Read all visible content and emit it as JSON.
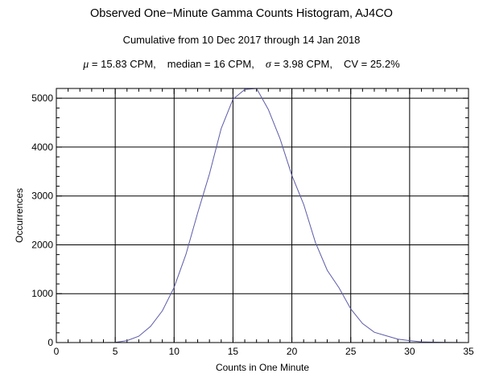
{
  "chart_data": {
    "type": "line",
    "title": "Observed One−Minute Gamma Counts Histogram, AJ4CO",
    "subtitle": "Cumulative from 10 Dec 2017 through 14 Jan 2018",
    "stats": {
      "mu_symbol": "μ",
      "mu_text": " = 15.83 CPM,",
      "median_text": "median = 16 CPM,",
      "sigma_symbol": "σ",
      "sigma_text": " = 3.98 CPM,",
      "cv_text": "CV = 25.2%"
    },
    "xlabel": "Counts in One Minute",
    "ylabel": "Occurrences",
    "xlim": [
      0,
      35
    ],
    "ylim": [
      0,
      5200
    ],
    "x_major_ticks": [
      0,
      5,
      10,
      15,
      20,
      25,
      30,
      35
    ],
    "y_major_ticks": [
      0,
      1000,
      2000,
      3000,
      4000,
      5000
    ],
    "grid": true,
    "line_color": "#5b5ba8",
    "series": [
      {
        "x": [
          0,
          1,
          2,
          3,
          4,
          5,
          6,
          7,
          8,
          9,
          10,
          11,
          12,
          13,
          14,
          15,
          16,
          17,
          18,
          19,
          20,
          21,
          22,
          23,
          24,
          25,
          26,
          27,
          28,
          29,
          30,
          31,
          32,
          33,
          34,
          35
        ],
        "y": [
          0,
          0,
          0,
          0,
          0,
          5,
          40,
          130,
          330,
          650,
          1130,
          1800,
          2650,
          3450,
          4380,
          4980,
          5180,
          5200,
          4770,
          4170,
          3420,
          2830,
          2050,
          1480,
          1120,
          690,
          390,
          210,
          140,
          70,
          40,
          15,
          8,
          3,
          1,
          0
        ]
      }
    ]
  }
}
